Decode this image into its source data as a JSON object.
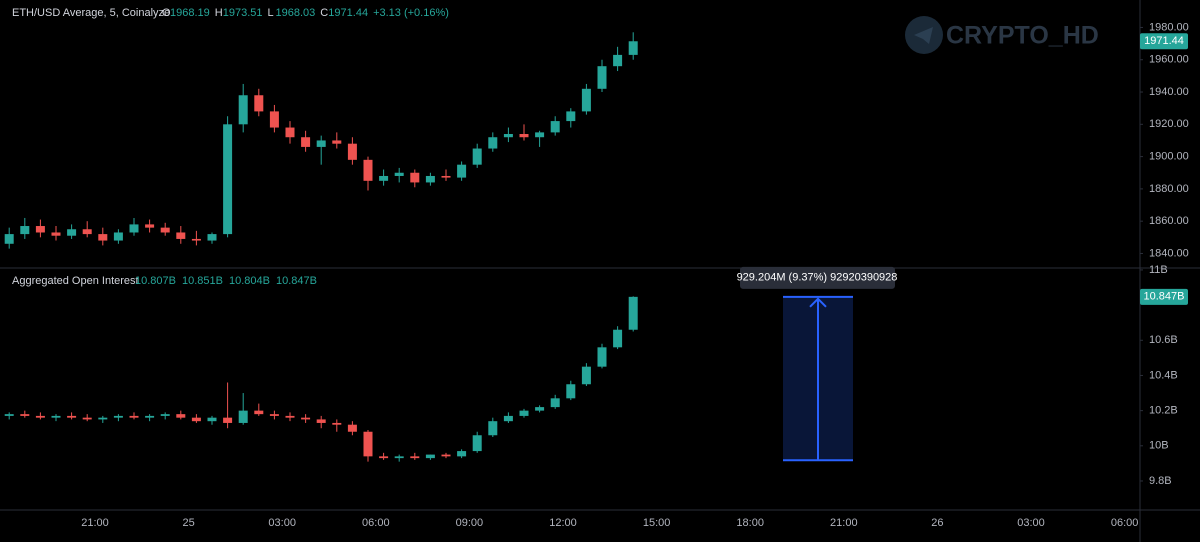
{
  "watermark": "CRYPTO_HD",
  "time_axis": {
    "labels": [
      "21:00",
      "25",
      "03:00",
      "06:00",
      "09:00",
      "12:00",
      "15:00",
      "18:00",
      "21:00",
      "26",
      "03:00",
      "06:00"
    ]
  },
  "chart_data": [
    {
      "type": "candlestick",
      "title": "ETH/USD Average, 5, Coinalyze",
      "legend": [
        {
          "label": "O",
          "value": 1968.19
        },
        {
          "label": "H",
          "value": 1973.51
        },
        {
          "label": "L",
          "value": 1968.03
        },
        {
          "label": "C",
          "value": 1971.44
        }
      ],
      "change": "+3.13 (+0.16%)",
      "up_color": "#26a69a",
      "down_color": "#ef5350",
      "ylim": [
        1831,
        1997
      ],
      "yticks": [
        {
          "value": 1840,
          "label": "1840.00"
        },
        {
          "value": 1860,
          "label": "1860.00"
        },
        {
          "value": 1880,
          "label": "1880.00"
        },
        {
          "value": 1900,
          "label": "1900.00"
        },
        {
          "value": 1920,
          "label": "1920.00"
        },
        {
          "value": 1940,
          "label": "1940.00"
        },
        {
          "value": 1960,
          "label": "1960.00"
        },
        {
          "value": 1980,
          "label": "1980.00"
        }
      ],
      "open": [
        1846,
        1852,
        1857,
        1853,
        1851,
        1855,
        1852,
        1848,
        1853,
        1858,
        1856,
        1853,
        1849,
        1848,
        1852,
        1920,
        1938,
        1928,
        1918,
        1912,
        1906,
        1910,
        1908,
        1898,
        1885,
        1888,
        1890,
        1884,
        1888,
        1887,
        1895,
        1905,
        1912,
        1914,
        1912,
        1915,
        1922,
        1928,
        1942,
        1956,
        1963
      ],
      "high": [
        1856,
        1862,
        1861,
        1857,
        1858,
        1860,
        1856,
        1855,
        1862,
        1861,
        1859,
        1857,
        1854,
        1853,
        1925,
        1945,
        1942,
        1932,
        1922,
        1916,
        1913,
        1915,
        1912,
        1900,
        1892,
        1893,
        1892,
        1890,
        1892,
        1897,
        1908,
        1915,
        1918,
        1920,
        1916,
        1925,
        1930,
        1945,
        1960,
        1968,
        1977
      ],
      "low": [
        1843,
        1849,
        1850,
        1848,
        1849,
        1850,
        1845,
        1846,
        1851,
        1853,
        1851,
        1846,
        1845,
        1846,
        1850,
        1915,
        1925,
        1915,
        1908,
        1903,
        1895,
        1905,
        1895,
        1879,
        1882,
        1884,
        1881,
        1882,
        1885,
        1885,
        1893,
        1903,
        1909,
        1910,
        1906,
        1913,
        1918,
        1926,
        1940,
        1953,
        1960
      ],
      "close": [
        1852,
        1857,
        1853,
        1851,
        1855,
        1852,
        1848,
        1853,
        1858,
        1856,
        1853,
        1849,
        1848,
        1852,
        1920,
        1938,
        1928,
        1918,
        1912,
        1906,
        1910,
        1908,
        1898,
        1885,
        1888,
        1890,
        1884,
        1888,
        1887,
        1895,
        1905,
        1912,
        1914,
        1912,
        1915,
        1922,
        1928,
        1942,
        1956,
        1963,
        1971.44
      ]
    },
    {
      "type": "candlestick",
      "title": "Aggregated Open Interest",
      "legend": [
        "10.807B",
        "10.851B",
        "10.804B",
        "10.847B"
      ],
      "last_label": "10.847B",
      "up_color": "#26a69a",
      "down_color": "#ef5350",
      "ylim": [
        9.635,
        11.011
      ],
      "yticks": [
        {
          "value": 9.8,
          "label": "9.8B"
        },
        {
          "value": 10,
          "label": "10B"
        },
        {
          "value": 10.2,
          "label": "10.2B"
        },
        {
          "value": 10.4,
          "label": "10.4B"
        },
        {
          "value": 10.6,
          "label": "10.6B"
        },
        {
          "value": 11,
          "label": "11B"
        }
      ],
      "open": [
        10.17,
        10.18,
        10.17,
        10.16,
        10.17,
        10.16,
        10.15,
        10.16,
        10.17,
        10.16,
        10.17,
        10.18,
        10.16,
        10.14,
        10.16,
        10.13,
        10.2,
        10.18,
        10.17,
        10.16,
        10.15,
        10.13,
        10.12,
        10.08,
        9.94,
        9.93,
        9.94,
        9.93,
        9.95,
        9.94,
        9.97,
        10.06,
        10.14,
        10.17,
        10.2,
        10.22,
        10.27,
        10.35,
        10.45,
        10.56,
        10.66
      ],
      "high": [
        10.19,
        10.2,
        10.19,
        10.18,
        10.19,
        10.18,
        10.17,
        10.18,
        10.19,
        10.18,
        10.19,
        10.2,
        10.18,
        10.17,
        10.36,
        10.3,
        10.24,
        10.2,
        10.19,
        10.18,
        10.17,
        10.15,
        10.14,
        10.09,
        9.96,
        9.95,
        9.96,
        9.95,
        9.96,
        9.98,
        10.08,
        10.16,
        10.19,
        10.21,
        10.23,
        10.29,
        10.37,
        10.47,
        10.58,
        10.68,
        10.85
      ],
      "low": [
        10.15,
        10.16,
        10.15,
        10.14,
        10.15,
        10.14,
        10.13,
        10.14,
        10.15,
        10.14,
        10.15,
        10.15,
        10.13,
        10.12,
        10.1,
        10.12,
        10.17,
        10.15,
        10.14,
        10.13,
        10.1,
        10.08,
        10.06,
        9.91,
        9.92,
        9.91,
        9.92,
        9.92,
        9.93,
        9.93,
        9.96,
        10.05,
        10.13,
        10.16,
        10.19,
        10.21,
        10.26,
        10.34,
        10.44,
        10.55,
        10.65
      ],
      "close": [
        10.18,
        10.17,
        10.16,
        10.17,
        10.16,
        10.15,
        10.16,
        10.17,
        10.16,
        10.17,
        10.18,
        10.16,
        10.14,
        10.16,
        10.13,
        10.2,
        10.18,
        10.17,
        10.16,
        10.15,
        10.13,
        10.12,
        10.08,
        9.94,
        9.93,
        9.94,
        9.93,
        9.95,
        9.94,
        9.97,
        10.06,
        10.14,
        10.17,
        10.2,
        10.22,
        10.27,
        10.35,
        10.45,
        10.56,
        10.66,
        10.847
      ],
      "measure": {
        "label": "929.204M (9.37%) 92920390928",
        "from": 9.918,
        "to": 10.847,
        "color": "#2962ff"
      }
    }
  ]
}
